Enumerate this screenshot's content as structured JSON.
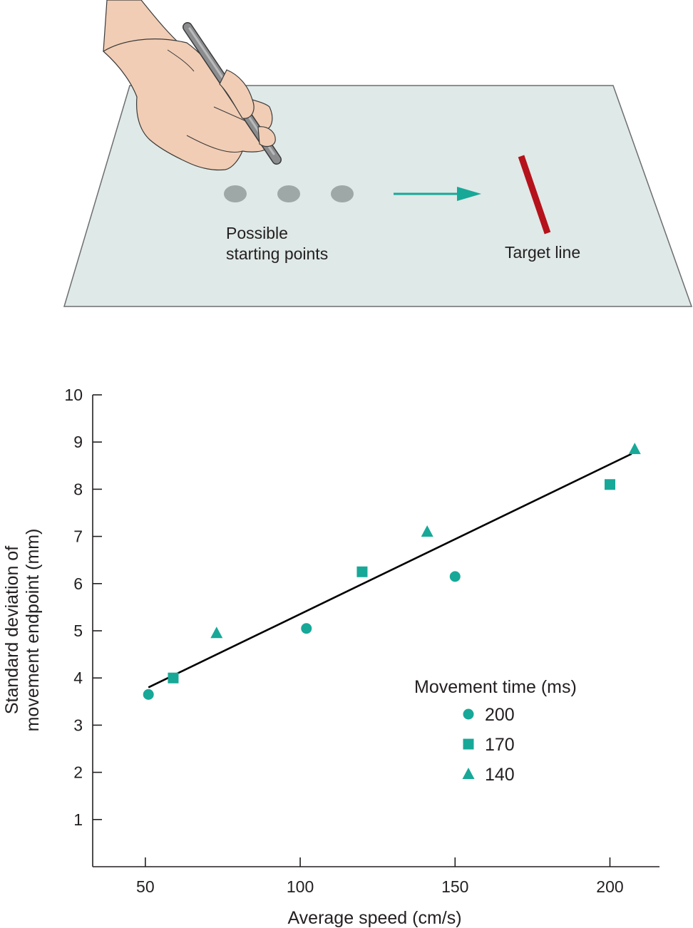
{
  "illustration": {
    "starting_points_label": [
      "Possible",
      "starting points"
    ],
    "target_label": "Target line",
    "colors": {
      "paper": "#dfe9e7",
      "paper_edge": "#6d6e71",
      "start_dot": "#9ea8a7",
      "arrow": "#17a898",
      "target": "#b5121b",
      "skin": "#f1cdb5",
      "pen": "#8a8c8e"
    }
  },
  "chart_data": {
    "type": "scatter",
    "xlabel": "Average speed (cm/s)",
    "ylabel": [
      "Standard deviation of",
      "movement endpoint (mm)"
    ],
    "xlim": [
      33,
      216
    ],
    "ylim": [
      0,
      10
    ],
    "x_ticks": [
      50,
      100,
      150,
      200
    ],
    "y_ticks": [
      1,
      2,
      3,
      4,
      5,
      6,
      7,
      8,
      9,
      10
    ],
    "grid": false,
    "legend_title": "Movement time (ms)",
    "legend_position": "lower-right",
    "marker_color": "#17a898",
    "series": [
      {
        "name": "200",
        "marker": "circle",
        "x": [
          51,
          102,
          150
        ],
        "y": [
          3.65,
          5.05,
          6.15
        ]
      },
      {
        "name": "170",
        "marker": "square",
        "x": [
          59,
          120,
          200
        ],
        "y": [
          4.0,
          6.25,
          8.1
        ]
      },
      {
        "name": "140",
        "marker": "triangle",
        "x": [
          73,
          141,
          208
        ],
        "y": [
          4.95,
          7.1,
          8.85
        ]
      }
    ],
    "fit_line": {
      "x": [
        51,
        207
      ],
      "y": [
        3.8,
        8.75
      ],
      "color": "#000000"
    }
  }
}
